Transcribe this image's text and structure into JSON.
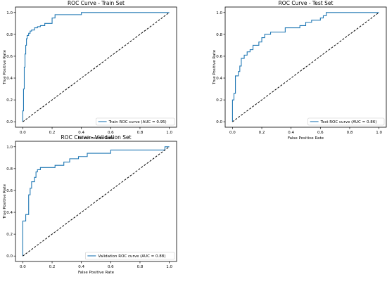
{
  "colors": {
    "roc_line": "#1f77b4",
    "diagonal": "#000000",
    "axes": "#000000",
    "background": "#ffffff",
    "legend_border": "#cccccc"
  },
  "chart_data": [
    {
      "type": "line",
      "title": "ROC Curve - Train Set",
      "xlabel": "False Positive Rate",
      "ylabel": "True Positive Rate",
      "xlim": [
        -0.05,
        1.05
      ],
      "ylim": [
        -0.05,
        1.05
      ],
      "xticks": [
        "0.0",
        "0.2",
        "0.4",
        "0.6",
        "0.8",
        "1.0"
      ],
      "yticks": [
        "0.0",
        "0.2",
        "0.4",
        "0.6",
        "0.8",
        "1.0"
      ],
      "grid": false,
      "legend_position": "lower right",
      "series": [
        {
          "name": "Train ROC curve (AUC = 0.95)",
          "style": "solid",
          "x": [
            0.0,
            0.0,
            0.0,
            0.005,
            0.005,
            0.01,
            0.01,
            0.015,
            0.015,
            0.02,
            0.02,
            0.025,
            0.025,
            0.03,
            0.03,
            0.04,
            0.04,
            0.05,
            0.05,
            0.06,
            0.06,
            0.08,
            0.08,
            0.1,
            0.1,
            0.12,
            0.12,
            0.15,
            0.15,
            0.2,
            0.2,
            0.22,
            0.22,
            0.4,
            0.4,
            1.0
          ],
          "y": [
            0.0,
            0.05,
            0.1,
            0.1,
            0.3,
            0.3,
            0.5,
            0.5,
            0.62,
            0.62,
            0.7,
            0.7,
            0.76,
            0.76,
            0.79,
            0.79,
            0.81,
            0.81,
            0.83,
            0.83,
            0.84,
            0.84,
            0.86,
            0.86,
            0.87,
            0.87,
            0.88,
            0.88,
            0.9,
            0.9,
            0.95,
            0.95,
            0.98,
            0.98,
            1.0,
            1.0
          ]
        },
        {
          "name": "",
          "style": "dashed",
          "x": [
            0,
            1
          ],
          "y": [
            0,
            1
          ]
        }
      ]
    },
    {
      "type": "line",
      "title": "ROC Curve - Test Set",
      "xlabel": "False Positive Rate",
      "ylabel": "True Positive Rate",
      "xlim": [
        -0.05,
        1.05
      ],
      "ylim": [
        -0.05,
        1.05
      ],
      "xticks": [
        "0.0",
        "0.2",
        "0.4",
        "0.6",
        "0.8",
        "1.0"
      ],
      "yticks": [
        "0.0",
        "0.2",
        "0.4",
        "0.6",
        "0.8",
        "1.0"
      ],
      "grid": false,
      "legend_position": "lower right",
      "series": [
        {
          "name": "Test ROC curve (AUC = 0.86)",
          "style": "solid",
          "x": [
            0.0,
            0.0,
            0.01,
            0.01,
            0.02,
            0.02,
            0.04,
            0.04,
            0.05,
            0.05,
            0.06,
            0.06,
            0.08,
            0.08,
            0.1,
            0.1,
            0.12,
            0.12,
            0.14,
            0.14,
            0.18,
            0.18,
            0.2,
            0.2,
            0.22,
            0.22,
            0.26,
            0.26,
            0.36,
            0.36,
            0.46,
            0.46,
            0.5,
            0.5,
            0.54,
            0.54,
            0.6,
            0.6,
            0.62,
            0.62,
            0.64,
            0.64,
            0.8,
            0.8,
            1.0
          ],
          "y": [
            0.0,
            0.2,
            0.2,
            0.26,
            0.26,
            0.42,
            0.42,
            0.46,
            0.46,
            0.51,
            0.51,
            0.58,
            0.58,
            0.61,
            0.61,
            0.64,
            0.64,
            0.66,
            0.66,
            0.7,
            0.7,
            0.73,
            0.73,
            0.77,
            0.77,
            0.8,
            0.8,
            0.82,
            0.82,
            0.86,
            0.86,
            0.88,
            0.88,
            0.91,
            0.91,
            0.93,
            0.93,
            0.95,
            0.95,
            0.97,
            0.97,
            1.0,
            1.0,
            1.0,
            1.0
          ]
        },
        {
          "name": "",
          "style": "dashed",
          "x": [
            0,
            1
          ],
          "y": [
            0,
            1
          ]
        }
      ]
    },
    {
      "type": "line",
      "title": "ROC Curve - Validation Set",
      "xlabel": "False Positive Rate",
      "ylabel": "True Positive Rate",
      "xlim": [
        -0.05,
        1.05
      ],
      "ylim": [
        -0.05,
        1.05
      ],
      "xticks": [
        "0.0",
        "0.2",
        "0.4",
        "0.6",
        "0.8",
        "1.0"
      ],
      "yticks": [
        "0.0",
        "0.2",
        "0.4",
        "0.6",
        "0.8",
        "1.0"
      ],
      "grid": false,
      "legend_position": "lower right",
      "series": [
        {
          "name": "Validation ROC curve (AUC = 0.88)",
          "style": "solid",
          "x": [
            0.0,
            0.0,
            0.02,
            0.02,
            0.04,
            0.04,
            0.05,
            0.05,
            0.06,
            0.06,
            0.08,
            0.08,
            0.09,
            0.09,
            0.1,
            0.1,
            0.12,
            0.12,
            0.16,
            0.16,
            0.22,
            0.22,
            0.28,
            0.28,
            0.32,
            0.32,
            0.38,
            0.38,
            0.44,
            0.44,
            0.6,
            0.6,
            0.97,
            0.97,
            1.0
          ],
          "y": [
            0.0,
            0.32,
            0.32,
            0.38,
            0.38,
            0.56,
            0.56,
            0.62,
            0.62,
            0.68,
            0.68,
            0.72,
            0.72,
            0.77,
            0.77,
            0.79,
            0.79,
            0.81,
            0.81,
            0.81,
            0.81,
            0.83,
            0.83,
            0.86,
            0.86,
            0.89,
            0.89,
            0.91,
            0.91,
            0.94,
            0.94,
            0.97,
            0.97,
            1.0,
            1.0
          ]
        },
        {
          "name": "",
          "style": "dashed",
          "x": [
            0,
            1
          ],
          "y": [
            0,
            1
          ]
        }
      ]
    }
  ]
}
